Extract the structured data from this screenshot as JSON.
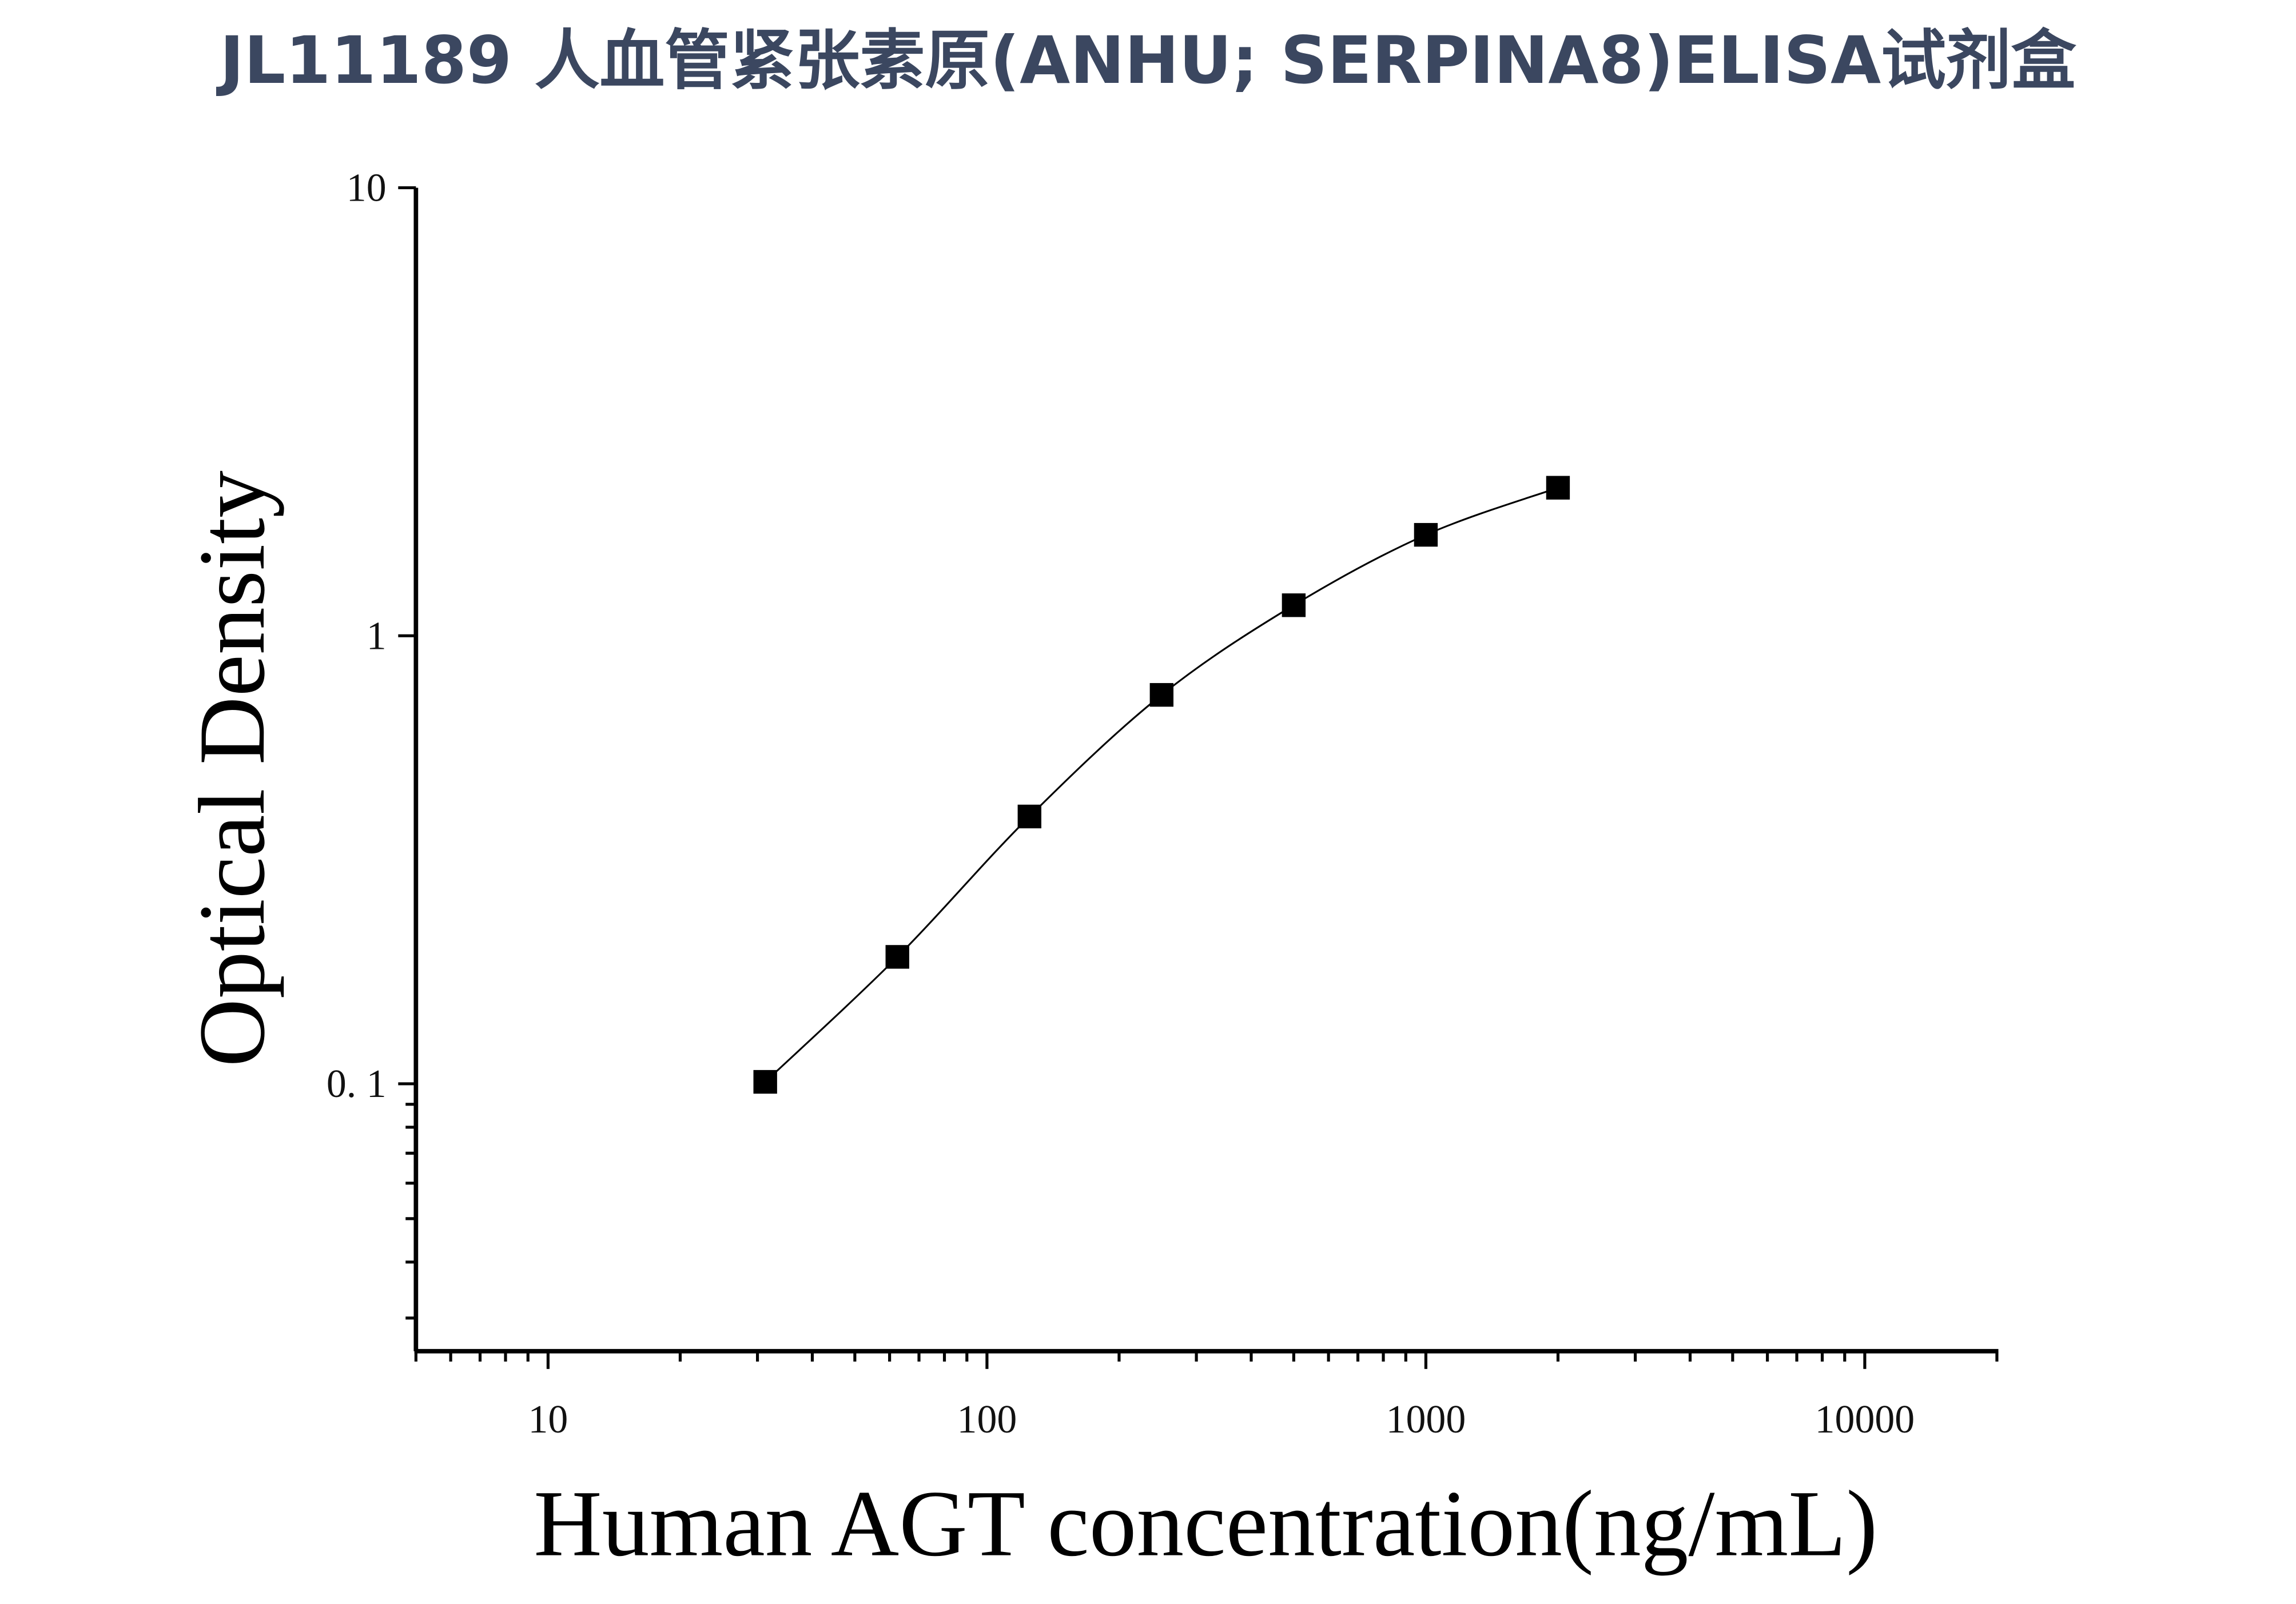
{
  "chart_data": {
    "type": "scatter",
    "title": "JL11189 人血管紧张素原(ANHU; SERPINA8)ELISA试剂盒",
    "x_label": "Human AGT concentration(ng/mL)",
    "y_label": "Optical Density",
    "x": [
      31.25,
      62.5,
      125,
      250,
      500,
      1000,
      2000
    ],
    "series": [
      {
        "color": "#000000",
        "values": [
          0.101,
          0.192,
          0.395,
          0.738,
          1.17,
          1.68,
          2.14
        ]
      }
    ],
    "xlog": true,
    "ylog": true,
    "xlim": [
      5,
      20000
    ],
    "ylim": [
      0.0253,
      10
    ],
    "xticks": [
      10,
      100,
      1000,
      10000
    ],
    "yticks": [
      {
        "value": 0.1,
        "label": "0. 1"
      },
      1,
      10
    ],
    "xminorticks": [
      5,
      6,
      7,
      8,
      9,
      20,
      30,
      40,
      50,
      60,
      70,
      80,
      90,
      200,
      300,
      400,
      500,
      600,
      700,
      800,
      900,
      2000,
      3000,
      4000,
      5000,
      6000,
      7000,
      8000,
      9000,
      20000
    ],
    "yminorticks": [
      0.03,
      0.04,
      0.05,
      0.06,
      0.07,
      0.08,
      0.09
    ],
    "fit_line": true
  }
}
